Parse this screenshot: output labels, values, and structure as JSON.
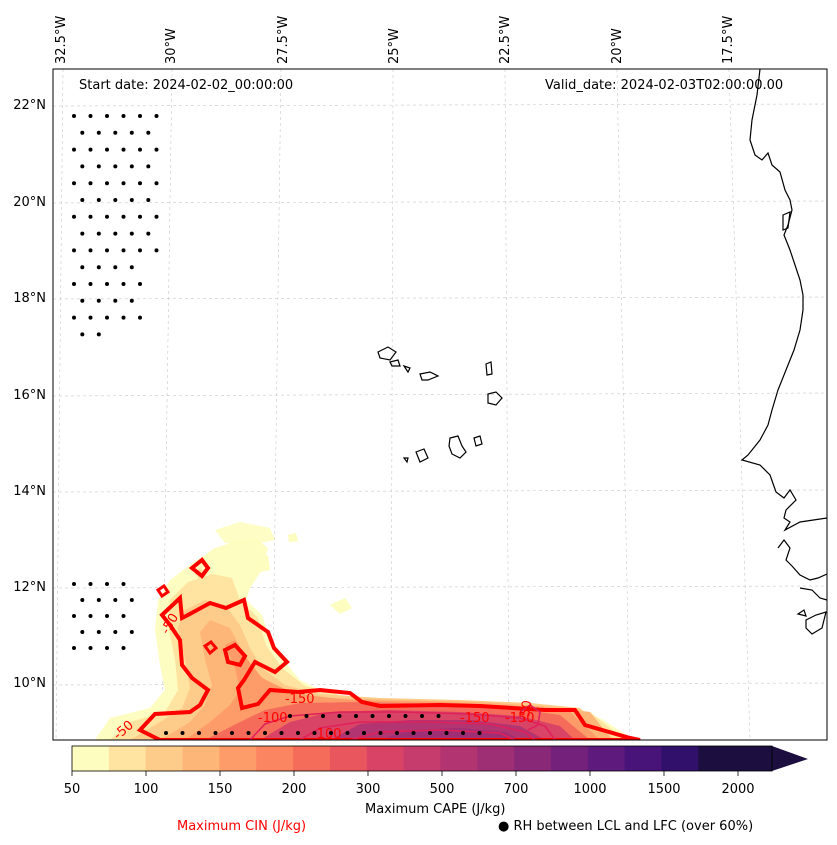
{
  "map": {
    "start_date": "Start date: 2024-02-02_00:00:00",
    "valid_date": "Valid_date: 2024-02-03T02:00:00.00",
    "longitude_labels": [
      "32.5°W",
      "30°W",
      "27.5°W",
      "25°W",
      "22.5°W",
      "20°W",
      "17.5°W"
    ],
    "latitude_labels": [
      "22°N",
      "20°N",
      "18°N",
      "16°N",
      "14°N",
      "12°N",
      "10°N"
    ],
    "cin_contour_labels": [
      "-50",
      "-100",
      "-150",
      "-100",
      "-150",
      "-150",
      "-50",
      "-50"
    ]
  },
  "colorbar": {
    "label": "Maximum CAPE (J/kg)",
    "tick_labels": [
      "50",
      "100",
      "150",
      "200",
      "300",
      "500",
      "700",
      "1000",
      "1500",
      "2000"
    ],
    "colors": [
      "#fdfdbf",
      "#fee4a0",
      "#fecc8a",
      "#feb578",
      "#fd9c68",
      "#fb8560",
      "#f56d5a",
      "#e9565d",
      "#d94466",
      "#c63c6d",
      "#b23471",
      "#9f2f75",
      "#8a2878",
      "#74217b",
      "#5e1a7c",
      "#48147a",
      "#30106a",
      "#1c0f3f"
    ],
    "extend_color": "#1c0f3f"
  },
  "legend": {
    "cin_label": "Maximum CIN (J/kg)",
    "cin_color": "#ff0000",
    "rh_label": "● RH between LCL and LFC (over 60%)"
  }
}
